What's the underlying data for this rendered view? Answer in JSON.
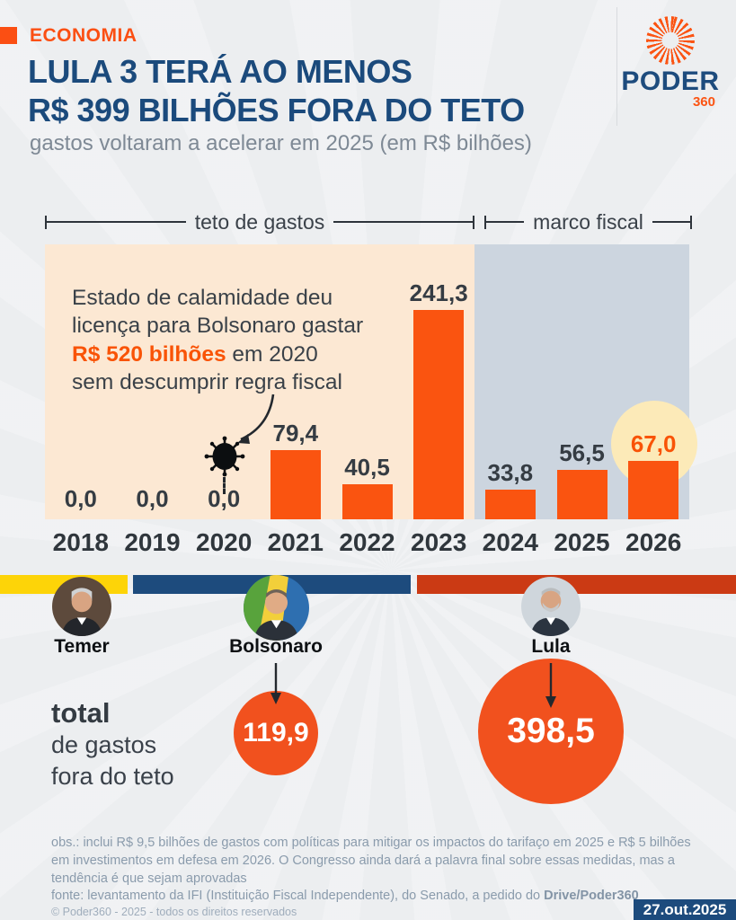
{
  "header": {
    "kicker": "ECONOMIA",
    "title_line1": "LULA 3 TERÁ AO MENOS",
    "title_line2": "R$ 399 BILHÕES FORA DO TETO",
    "subtitle": "gastos voltaram a acelerar em 2025 (em R$ bilhões)",
    "logo": {
      "word": "PODER",
      "number": "360"
    }
  },
  "chart_data": {
    "type": "bar",
    "title": "LULA 3 TERÁ AO MENOS R$ 399 BILHÕES FORA DO TETO",
    "subtitle": "gastos voltaram a acelerar em 2025 (em R$ bilhões)",
    "categories": [
      "2018",
      "2019",
      "2020",
      "2021",
      "2022",
      "2023",
      "2024",
      "2025",
      "2026"
    ],
    "values": [
      0.0,
      0.0,
      0.0,
      79.4,
      40.5,
      241.3,
      33.8,
      56.5,
      67.0
    ],
    "value_labels": [
      "0,0",
      "0,0",
      "0,0",
      "79,4",
      "40,5",
      "241,3",
      "33,8",
      "56,5",
      "67,0"
    ],
    "unit": "R$ bilhões",
    "ylim": [
      0,
      250
    ],
    "grid": false,
    "highlight_year": "2026",
    "regions": [
      {
        "label": "teto de gastos",
        "from": "2018",
        "to": "2023",
        "bg": "#fce8d3"
      },
      {
        "label": "marco fiscal",
        "from": "2024",
        "to": "2026",
        "bg": "#ccd5df"
      }
    ]
  },
  "annotation": {
    "line1": "Estado de calamidade deu",
    "line2": "licença para Bolsonaro gastar",
    "line3_highlight": "R$ 520 bilhões",
    "line3_rest": " em 2020",
    "line4": "sem descumprir regra fiscal"
  },
  "presidents": [
    {
      "name": "Temer",
      "timeline_color": "#fdd408",
      "total": null
    },
    {
      "name": "Bolsonaro",
      "timeline_color": "#1d4b7d",
      "total": "119,9"
    },
    {
      "name": "Lula",
      "timeline_color": "#cb3a14",
      "total": "398,5"
    }
  ],
  "total_block": {
    "bold": "total",
    "line2": "de gastos",
    "line3": "fora do teto"
  },
  "footer": {
    "obs_lines": [
      "obs.: inclui R$ 9,5 bilhões de gastos com políticas para mitigar os impactos do tarifaço em 2025 e R$ 5 bilhões",
      "em investimentos em defesa em 2026. O Congresso ainda dará a palavra final sobre essas medidas, mas a",
      "tendência é que sejam aprovadas"
    ],
    "fonte_prefix": "fonte: levantamento da IFI (Instituição Fiscal Independente), do Senado, a pedido do ",
    "fonte_bold": "Drive/Poder360",
    "copyright": "© Poder360 - 2025 - todos os direitos reservados",
    "date_badge": "27.out.2025"
  },
  "colors": {
    "accent_orange": "#fa5410",
    "title_navy": "#1b4a7c",
    "teto_bg": "#fce8d3",
    "marco_bg": "#ccd5df",
    "highlight_yellow": "#fceab8",
    "timeline_yellow": "#fdd408",
    "timeline_navy": "#1d4b7d",
    "timeline_red": "#cb3a14",
    "total_circle": "#f1511e",
    "footer_text": "#8a9bac",
    "badge_navy": "#1d4b7d"
  }
}
